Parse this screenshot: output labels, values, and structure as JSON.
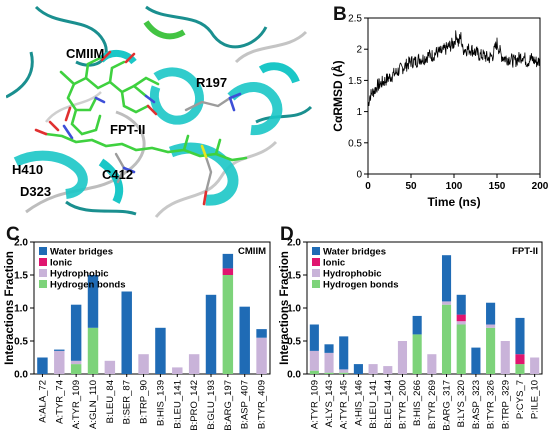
{
  "panels": {
    "a": {
      "letter": "A"
    },
    "b": {
      "letter": "B"
    },
    "c": {
      "letter": "C"
    },
    "d": {
      "letter": "D"
    }
  },
  "structure_labels": [
    {
      "id": "cmiim",
      "text": "CMIIM"
    },
    {
      "id": "r197",
      "text": "R197"
    },
    {
      "id": "fpt",
      "text": "FPT-II"
    },
    {
      "id": "h410",
      "text": "H410"
    },
    {
      "id": "c412",
      "text": "C412"
    },
    {
      "id": "d323",
      "text": "D323"
    }
  ],
  "colors": {
    "water_bridges": "#1f6bb5",
    "ionic": "#e0156f",
    "hydrophobic": "#c9b3d9",
    "hydrogen_bonds": "#7dd37a",
    "rmsd_line": "#000000",
    "helix": "#1bc7c7",
    "ligand": "#45d445"
  },
  "chart_data": [
    {
      "id": "rmsd",
      "type": "line",
      "xlabel": "Time (ns)",
      "ylabel": "CαRMSD (Å)",
      "xlim": [
        0,
        200
      ],
      "ylim": [
        0,
        2.5
      ],
      "xticks": [
        0,
        50,
        100,
        150,
        200
      ],
      "yticks": [
        0,
        0.5,
        1,
        1.5,
        2,
        2.5
      ],
      "yticklabels": [
        "0",
        "0.5",
        "1",
        "1.5",
        "2",
        "2.5"
      ],
      "x": [
        0,
        2,
        5,
        8,
        10,
        15,
        20,
        25,
        30,
        35,
        40,
        45,
        50,
        55,
        60,
        65,
        70,
        75,
        80,
        85,
        90,
        95,
        100,
        103,
        105,
        108,
        110,
        115,
        120,
        125,
        130,
        135,
        140,
        145,
        150,
        155,
        160,
        165,
        170,
        175,
        180,
        185,
        190,
        195,
        200
      ],
      "y": [
        1.1,
        1.25,
        1.3,
        1.35,
        1.4,
        1.45,
        1.5,
        1.55,
        1.6,
        1.65,
        1.7,
        1.75,
        1.8,
        1.8,
        1.85,
        1.85,
        1.9,
        1.9,
        1.95,
        1.95,
        2.0,
        2.05,
        2.1,
        2.25,
        2.1,
        2.2,
        2.0,
        2.0,
        2.0,
        1.95,
        1.9,
        1.9,
        1.85,
        1.9,
        2.1,
        1.9,
        1.85,
        1.85,
        1.8,
        1.85,
        1.9,
        1.8,
        1.85,
        1.8,
        1.8
      ]
    },
    {
      "id": "cmiim",
      "type": "bar",
      "stacked": true,
      "annotation": "CMIIM",
      "ylabel": "Interactions Fraction",
      "ylim": [
        0,
        2.0
      ],
      "yticks": [
        0,
        0.5,
        1,
        1.5,
        2
      ],
      "yticklabels": [
        "0.0",
        "0.5",
        "1.0",
        "1.5",
        "2.0"
      ],
      "legend": "top-left",
      "categories": [
        "A:ALA_72",
        "A:TYR_74",
        "A:TYR_109",
        "A:GLN_110",
        "B:LEU_84",
        "B:SER_87",
        "B:TRP_90",
        "B:HIS_139",
        "B:LEU_141",
        "B:PRO_142",
        "B:GLU_193",
        "B:ARG_197",
        "B:ASP_407",
        "B:TYR_409"
      ],
      "series": [
        {
          "name": "Hydrogen bonds",
          "key": "hydrogen_bonds",
          "values": [
            0,
            0,
            0.15,
            0.7,
            0,
            0,
            0,
            0,
            0,
            0,
            0,
            1.5,
            0,
            0
          ]
        },
        {
          "name": "Hydrophobic",
          "key": "hydrophobic",
          "values": [
            0,
            0.35,
            0.05,
            0,
            0.2,
            0,
            0.3,
            0,
            0.1,
            0.3,
            0,
            0,
            0,
            0.55
          ]
        },
        {
          "name": "Ionic",
          "key": "ionic",
          "values": [
            0,
            0,
            0,
            0,
            0,
            0,
            0,
            0,
            0,
            0,
            0,
            0.1,
            0,
            0
          ]
        },
        {
          "name": "Water bridges",
          "key": "water_bridges",
          "values": [
            0.25,
            0.02,
            0.85,
            0.8,
            0,
            1.25,
            0,
            0.7,
            0,
            0,
            1.2,
            0.22,
            1.02,
            0.13
          ]
        }
      ]
    },
    {
      "id": "fpt",
      "type": "bar",
      "stacked": true,
      "annotation": "FPT-II",
      "ylabel": "Interactions Fraction",
      "ylim": [
        0,
        2.0
      ],
      "yticks": [
        0,
        0.5,
        1,
        1.5,
        2
      ],
      "yticklabels": [
        "0.0",
        "0.5",
        "1.0",
        "1.5",
        "2.0"
      ],
      "legend": "top-left",
      "categories": [
        "A:TYR_109",
        "A:LYS_143",
        "A:TYR_145",
        "A:HIS_146",
        "B:LEU_141",
        "B:LEU_144",
        "B:TYR_200",
        "B:HIS_266",
        "B:TYR_269",
        "B:ARG_317",
        "B:LYS_320",
        "B:ASP_323",
        "B:TYR_326",
        "B:TRP_329",
        "P:CYS_7",
        "P:ILE_10"
      ],
      "series": [
        {
          "name": "Hydrogen bonds",
          "key": "hydrogen_bonds",
          "values": [
            0.05,
            0.02,
            0.02,
            0,
            0,
            0,
            0,
            0.6,
            0,
            1.05,
            0.75,
            0,
            0.7,
            0,
            0.15,
            0
          ]
        },
        {
          "name": "Hydrophobic",
          "key": "hydrophobic",
          "values": [
            0.3,
            0.3,
            0.05,
            0,
            0.15,
            0.12,
            0.5,
            0,
            0.3,
            0.05,
            0.05,
            0,
            0.05,
            0.5,
            0,
            0.25
          ]
        },
        {
          "name": "Ionic",
          "key": "ionic",
          "values": [
            0,
            0,
            0,
            0,
            0,
            0,
            0,
            0,
            0,
            0,
            0.1,
            0,
            0,
            0,
            0.15,
            0
          ]
        },
        {
          "name": "Water bridges",
          "key": "water_bridges",
          "values": [
            0.4,
            0.13,
            0.5,
            0.15,
            0,
            0,
            0,
            0.28,
            0,
            0.7,
            0.3,
            0.4,
            0.33,
            0,
            0.55,
            0
          ]
        }
      ]
    }
  ]
}
